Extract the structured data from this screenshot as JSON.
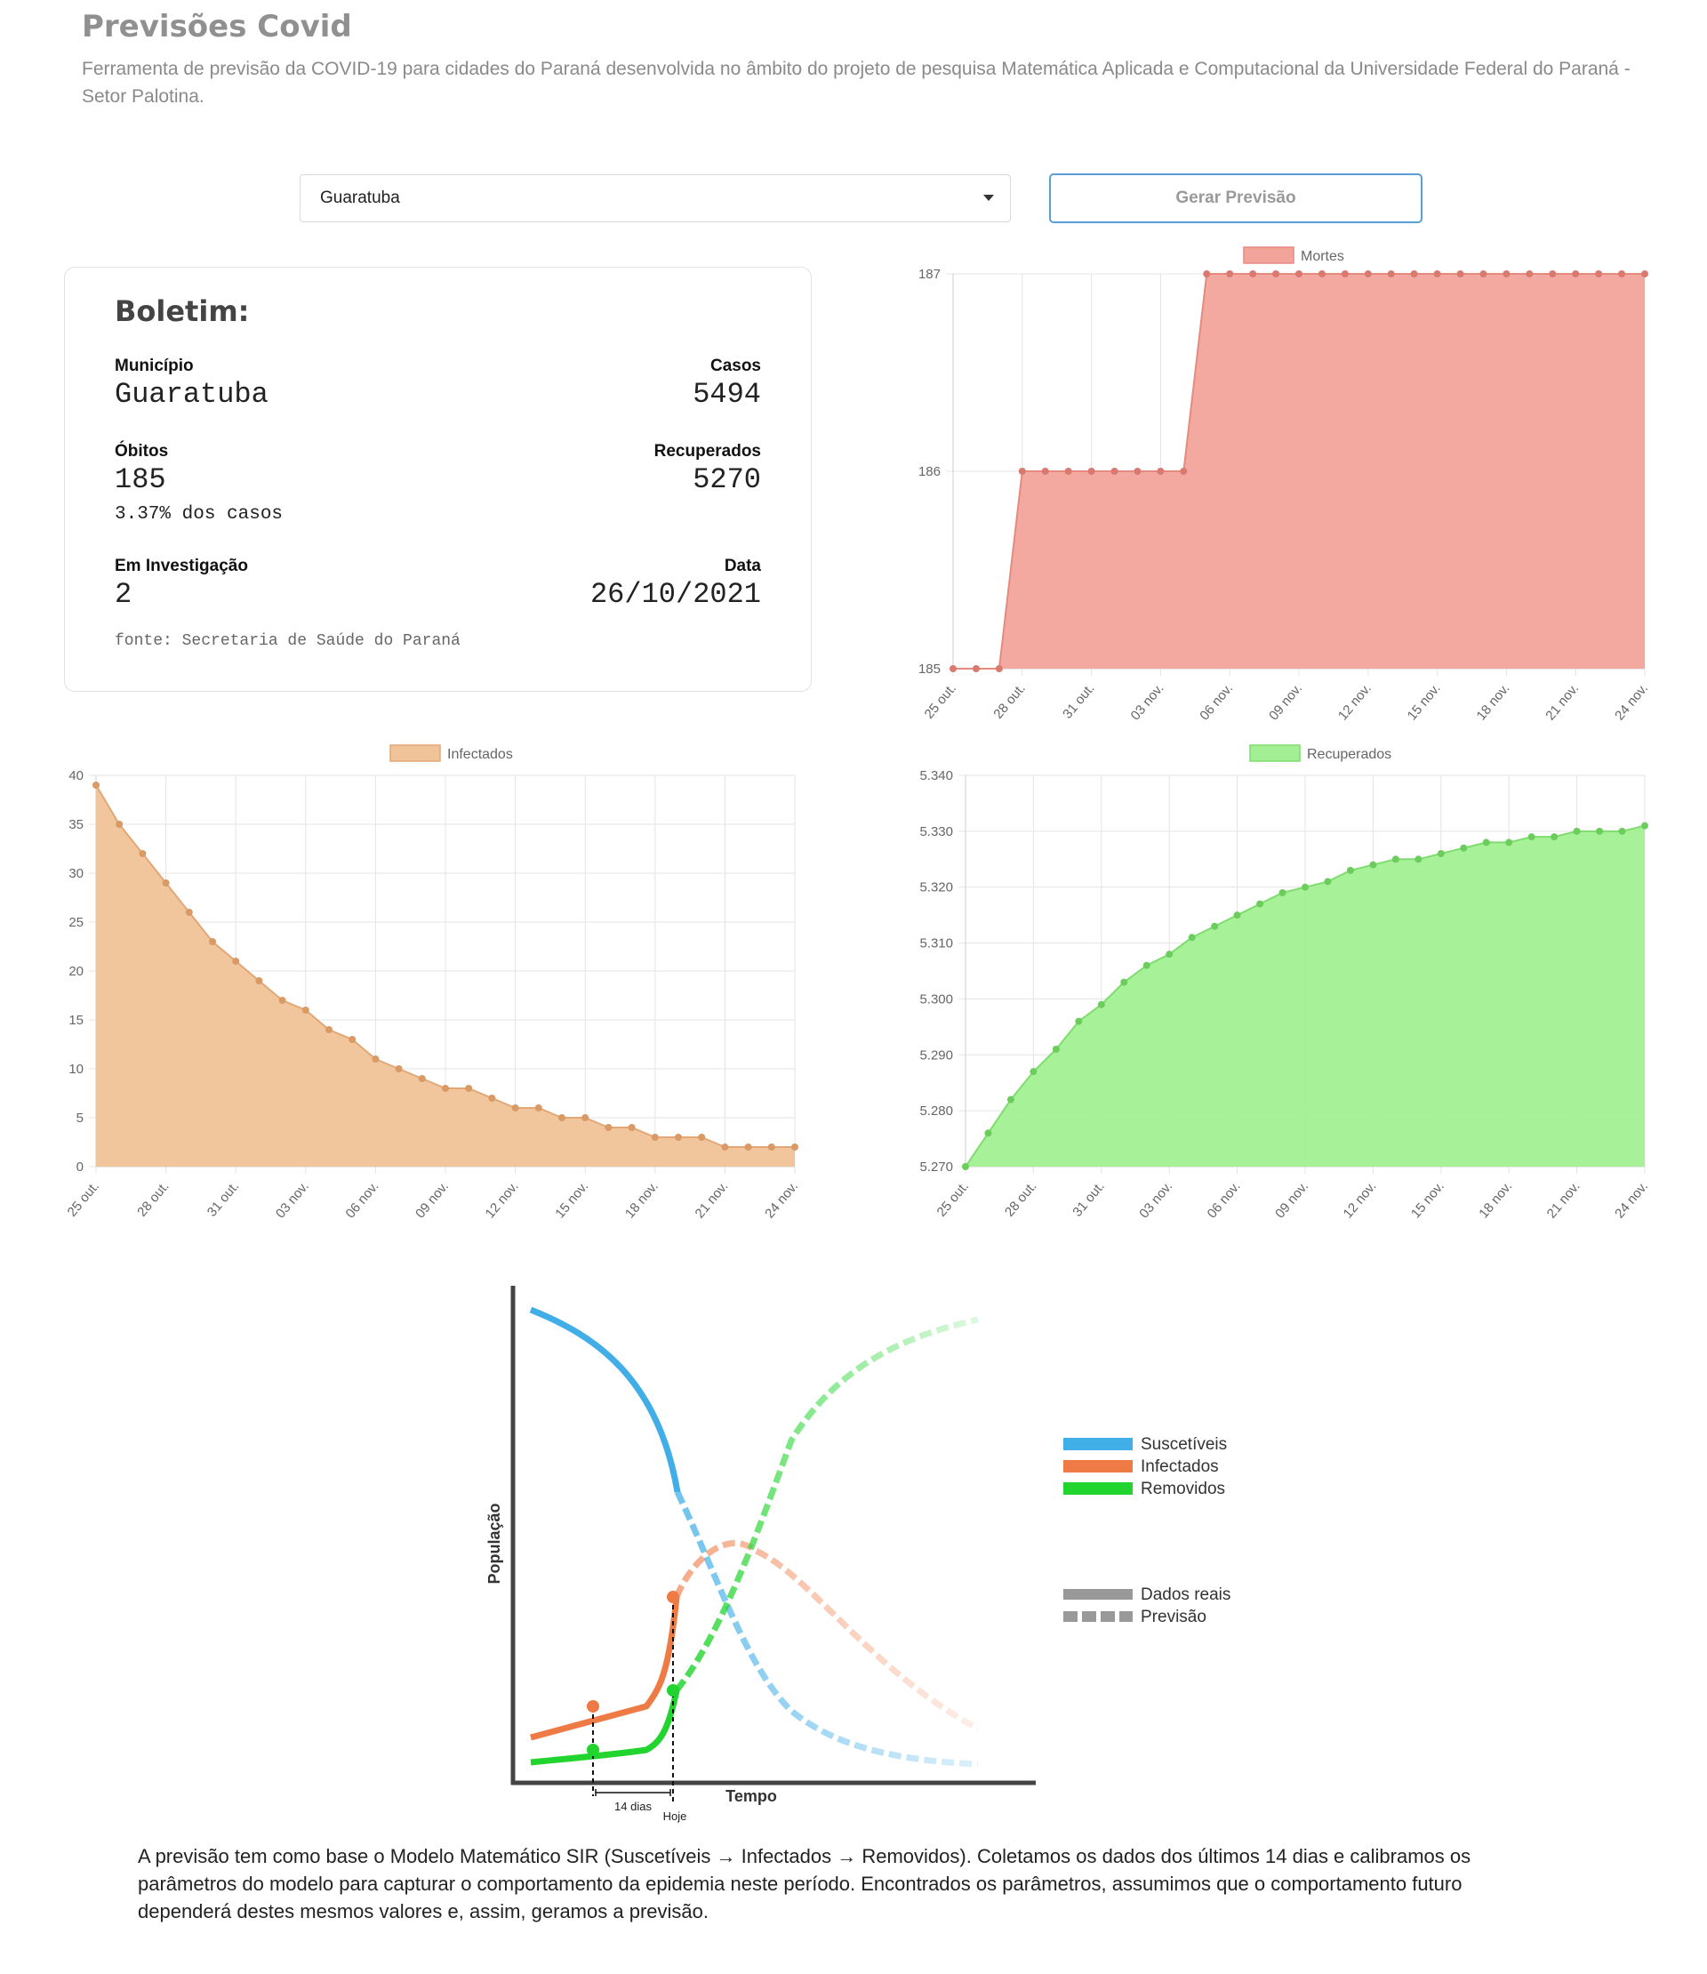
{
  "header": {
    "title": "Previsões Covid",
    "description": "Ferramenta de previsão da COVID-19 para cidades do Paraná desenvolvida no âmbito do projeto de pesquisa Matemática Aplicada e Computacional da Universidade Federal do Paraná - Setor Palotina."
  },
  "controls": {
    "city": "Guaratuba",
    "generate_label": "Gerar Previsão"
  },
  "bulletin": {
    "title": "Boletim:",
    "municipio_label": "Município",
    "municipio": "Guaratuba",
    "casos_label": "Casos",
    "casos": "5494",
    "obitos_label": "Óbitos",
    "obitos": "185",
    "obitos_pct": "3.37% dos casos",
    "recuperados_label": "Recuperados",
    "recuperados": "5270",
    "investigacao_label": "Em Investigação",
    "investigacao": "2",
    "data_label": "Data",
    "data": "26/10/2021",
    "fonte": "fonte: Secretaria de Saúde do Paraná"
  },
  "sir_figure": {
    "ylabel": "População",
    "xlabel": "Tempo",
    "legend": [
      "Suscetíveis",
      "Infectados",
      "Removidos"
    ],
    "legend_style": [
      "Dados reais",
      "Previsão"
    ],
    "interval_label": "14 dias",
    "today_label": "Hoje",
    "colors": {
      "suscetiveis": "#41aee8",
      "infectados": "#ee7b45",
      "removidos": "#22d42e",
      "axis": "#444444",
      "style": "#999999"
    }
  },
  "explanation": "A previsão tem como base o Modelo Matemático SIR (Suscetíveis → Infectados → Removidos). Coletamos os dados dos últimos 14 dias e calibramos os parâmetros do modelo para capturar o comportamento da epidemia neste período. Encontrados os parâmetros, assumimos que o comportamento futuro dependerá destes mesmos valores e, assim, geramos a previsão.",
  "chart_data": [
    {
      "id": "mortes",
      "type": "area",
      "series": [
        {
          "name": "Mortes",
          "values": [
            185,
            185,
            185,
            186,
            186,
            186,
            186,
            186,
            186,
            186,
            186,
            187,
            187,
            187,
            187,
            187,
            187,
            187,
            187,
            187,
            187,
            187,
            187,
            187,
            187,
            187,
            187,
            187,
            187,
            187,
            187
          ]
        }
      ],
      "x_start": "25 out.",
      "x_ticks": [
        "25 out.",
        "28 out.",
        "31 out.",
        "03 nov.",
        "06 nov.",
        "09 nov.",
        "12 nov.",
        "15 nov.",
        "18 nov.",
        "21 nov.",
        "24 nov."
      ],
      "y_ticks": [
        "185",
        "186",
        "187"
      ],
      "ylim": [
        185,
        187
      ],
      "colors": {
        "fill": "#f2a49b",
        "line": "#e68a80",
        "point": "#d97a70"
      },
      "grid": true,
      "legend": "top"
    },
    {
      "id": "infectados",
      "type": "area",
      "series": [
        {
          "name": "Infectados",
          "values": [
            39,
            35,
            32,
            29,
            26,
            23,
            21,
            19,
            17,
            16,
            14,
            13,
            11,
            10,
            9,
            8,
            8,
            7,
            6,
            6,
            5,
            5,
            4,
            4,
            3,
            3,
            3,
            2,
            2,
            2,
            2
          ]
        }
      ],
      "x_ticks": [
        "25 out.",
        "28 out.",
        "31 out.",
        "03 nov.",
        "06 nov.",
        "09 nov.",
        "12 nov.",
        "15 nov.",
        "18 nov.",
        "21 nov.",
        "24 nov."
      ],
      "y_ticks": [
        "0",
        "5",
        "10",
        "15",
        "20",
        "25",
        "30",
        "35",
        "40"
      ],
      "ylim": [
        0,
        40
      ],
      "colors": {
        "fill": "#f0c398",
        "line": "#e3a775",
        "point": "#d99a65"
      },
      "grid": true,
      "legend": "top"
    },
    {
      "id": "recuperados",
      "type": "area",
      "series": [
        {
          "name": "Recuperados",
          "values": [
            5270,
            5276,
            5282,
            5287,
            5291,
            5296,
            5299,
            5303,
            5306,
            5308,
            5311,
            5313,
            5315,
            5317,
            5319,
            5320,
            5321,
            5323,
            5324,
            5325,
            5325,
            5326,
            5327,
            5328,
            5328,
            5329,
            5329,
            5330,
            5330,
            5330,
            5331
          ]
        }
      ],
      "x_ticks": [
        "25 out.",
        "28 out.",
        "31 out.",
        "03 nov.",
        "06 nov.",
        "09 nov.",
        "12 nov.",
        "15 nov.",
        "18 nov.",
        "21 nov.",
        "24 nov."
      ],
      "y_ticks": [
        "5.270",
        "5.280",
        "5.290",
        "5.300",
        "5.310",
        "5.320",
        "5.330",
        "5.340"
      ],
      "ylim": [
        5270,
        5340
      ],
      "colors": {
        "fill": "#a2f093",
        "line": "#7fdc6e",
        "point": "#6ccd5c"
      },
      "grid": true,
      "legend": "top"
    }
  ]
}
